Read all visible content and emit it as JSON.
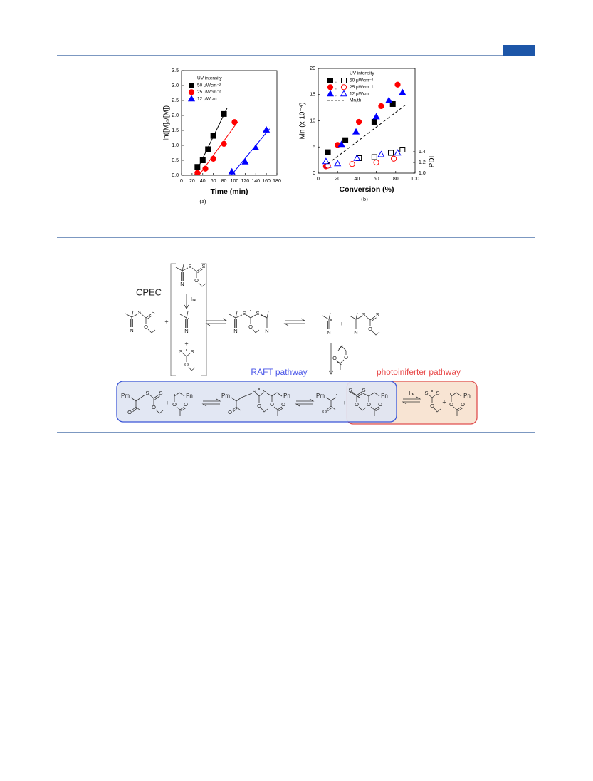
{
  "chart_data": [
    {
      "type": "scatter",
      "caption": "(a)",
      "xlabel": "Time (min)",
      "ylabel": "ln([M]₀/[M])",
      "legend_title": "UV intensity",
      "trendline": true,
      "xlim": [
        0,
        180
      ],
      "ylim": [
        0,
        3.5
      ],
      "xticks": [
        0,
        20,
        40,
        60,
        80,
        100,
        120,
        140,
        160,
        180
      ],
      "yticks": [
        {
          "value": 0,
          "label": "0.0"
        },
        0.5,
        {
          "value": 1,
          "label": "1.0"
        },
        1.5,
        {
          "value": 2,
          "label": "2.0"
        },
        2.5,
        {
          "value": 3,
          "label": "3.0"
        },
        3.5
      ],
      "series": [
        {
          "name": "50 μWcm⁻²",
          "color": "#000000",
          "marker": "square",
          "x": [
            30,
            40,
            50,
            60,
            80
          ],
          "values": [
            0.28,
            0.5,
            0.87,
            1.32,
            2.05
          ]
        },
        {
          "name": "25 μWcm⁻²",
          "color": "#ff0000",
          "marker": "circle",
          "x": [
            30,
            45,
            60,
            80,
            100
          ],
          "values": [
            0.08,
            0.22,
            0.55,
            1.05,
            1.78
          ]
        },
        {
          "name": "12 μWcm",
          "color": "#0000ff",
          "marker": "triangle",
          "x": [
            95,
            120,
            140,
            160
          ],
          "values": [
            0.12,
            0.45,
            0.92,
            1.52
          ]
        }
      ]
    },
    {
      "type": "scatter",
      "caption": "(b)",
      "xlabel": "Conversion (%)",
      "ylabel": "Mn (x 10⁻⁴)",
      "y2label": "PDI",
      "legend_title": "UV intensity",
      "legend_joiner": ",",
      "xlim": [
        0,
        100
      ],
      "ylim": [
        0,
        20
      ],
      "y2lim": [
        1,
        2.96
      ],
      "xticks": [
        0,
        20,
        40,
        60,
        80,
        100
      ],
      "yticks": [
        0,
        5,
        10,
        15,
        20
      ],
      "y2ticks": [
        {
          "value": 1,
          "label": "1.0"
        },
        1.2,
        1.4
      ],
      "series": [
        {
          "name": "50 μWcm⁻²",
          "color": "#000000",
          "marker": "square",
          "filled": true,
          "x": [
            10,
            28,
            58,
            77
          ],
          "values": [
            4,
            6.3,
            9.8,
            13.2
          ]
        },
        {
          "name": "25 μWcm⁻²",
          "color": "#ff0000",
          "marker": "circle",
          "filled": true,
          "x": [
            8,
            20,
            42,
            65,
            82
          ],
          "values": [
            1.3,
            5.4,
            9.8,
            12.8,
            16.9
          ]
        },
        {
          "name": "12 μWcm",
          "color": "#0000ff",
          "marker": "triangle",
          "filled": true,
          "x": [
            10,
            24,
            39,
            60,
            73,
            87
          ],
          "values": [
            1.5,
            5.5,
            7.9,
            10.8,
            13.9,
            15.4
          ]
        },
        {
          "color": "#000000",
          "marker": "square",
          "filled": false,
          "axis": "y2",
          "x": [
            25,
            42,
            58,
            75,
            87
          ],
          "values": [
            1.2,
            1.28,
            1.3,
            1.38,
            1.44
          ]
        },
        {
          "color": "#ff0000",
          "marker": "circle",
          "filled": false,
          "axis": "y2",
          "x": [
            10,
            35,
            60,
            78
          ],
          "values": [
            1.14,
            1.17,
            1.2,
            1.27
          ]
        },
        {
          "color": "#0000ff",
          "marker": "triangle",
          "filled": false,
          "axis": "y2",
          "x": [
            8,
            20,
            40,
            65,
            82
          ],
          "values": [
            1.22,
            1.18,
            1.28,
            1.35,
            1.38
          ]
        },
        {
          "name": "Mn,th",
          "color": "#000000",
          "marker": "dashed-line",
          "x": [
            10,
            90
          ],
          "values": [
            1.8,
            13
          ]
        }
      ]
    }
  ],
  "scheme": {
    "cpec": "CPEC",
    "hv": "hν",
    "plus": "+",
    "raft": "RAFT pathway",
    "photo": "photoiniferter pathway",
    "S": "S",
    "N": "N",
    "O": "O",
    "Pm": "Pm",
    "Pn": "Pn"
  }
}
